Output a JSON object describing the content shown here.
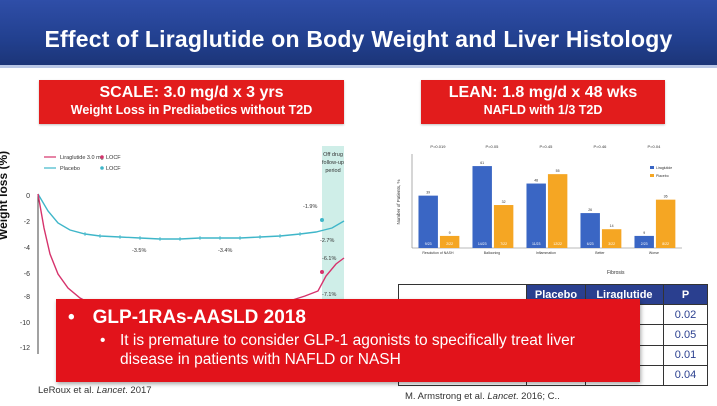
{
  "title": "Effect of Liraglutide on Body Weight and Liver Histology",
  "scale_box": {
    "line1": "SCALE: 3.0 mg/d x 3 yrs",
    "line2": "Weight Loss in Prediabetics without T2D"
  },
  "lean_box": {
    "line1": "LEAN: 1.8 mg/d x 48 wks",
    "line2": "NAFLD with 1/3 T2D"
  },
  "left_chart": {
    "ylabel": "Weight loss (%)",
    "legend": [
      "Liraglutide 3.0 mg",
      "Placebo",
      "LOCF",
      "LOCF"
    ],
    "offdrug_label": [
      "Off drug",
      "follow-up",
      "period"
    ],
    "yticks": [
      "0",
      "-2",
      "-4",
      "-6",
      "-8",
      "-10",
      "-12"
    ],
    "annotations": [
      "-3.5%",
      "-3.4%",
      "-1.9%",
      "-2.7%",
      "-6.1%",
      "-7.1%"
    ],
    "colors": {
      "liraglutide": "#d6336c",
      "placebo": "#3fb6c9",
      "offdrug": "#cfeee8"
    }
  },
  "right_chart": {
    "ylabel": "Number of Patients, %",
    "xlabel": "Fibrosis",
    "legend": [
      "Liraglutide",
      "Placebo"
    ],
    "groups": [
      {
        "p": "P=0.019",
        "label": "Resolution of NASH",
        "lira": 39,
        "placebo": 9,
        "lira_n": "9/23",
        "placebo_n": "2/22"
      },
      {
        "p": "P=0.05",
        "label": "Ballooning",
        "lira": 61,
        "placebo": 32,
        "lira_n": "14/23",
        "placebo_n": "7/22"
      },
      {
        "p": "P=0.45",
        "label": "Inflammation",
        "lira": 48,
        "placebo": 55,
        "lira_n": "11/23",
        "placebo_n": "12/22"
      },
      {
        "p": "P=0.46",
        "label": "Better",
        "lira": 26,
        "placebo": 14,
        "lira_n": "6/23",
        "placebo_n": "3/22"
      },
      {
        "p": "P=0.04",
        "label": "Worse",
        "lira": 9,
        "placebo": 36,
        "lira_n": "2/23",
        "placebo_n": "8/22"
      }
    ],
    "colors": {
      "liraglutide": "#3a66c4",
      "placebo": "#f5a623"
    }
  },
  "table": {
    "headers": [
      "",
      "Placebo",
      "Liraglutide",
      "P"
    ],
    "p_values": [
      "0.02",
      "0.05",
      "0.01",
      "0.04"
    ]
  },
  "banner": {
    "bullet1": "GLP-1RAs-AASLD 2018",
    "bullet2": "It is premature to consider GLP-1 agonists to specifically treat liver disease in patients with NAFLD or NASH"
  },
  "citations": {
    "left_author": "LeRoux et al. ",
    "left_journal": "Lancet",
    "left_year": ". 2017",
    "right_author": "M. Armstrong et al. ",
    "right_journal": "Lancet",
    "right_year": ". 2016; C.."
  }
}
